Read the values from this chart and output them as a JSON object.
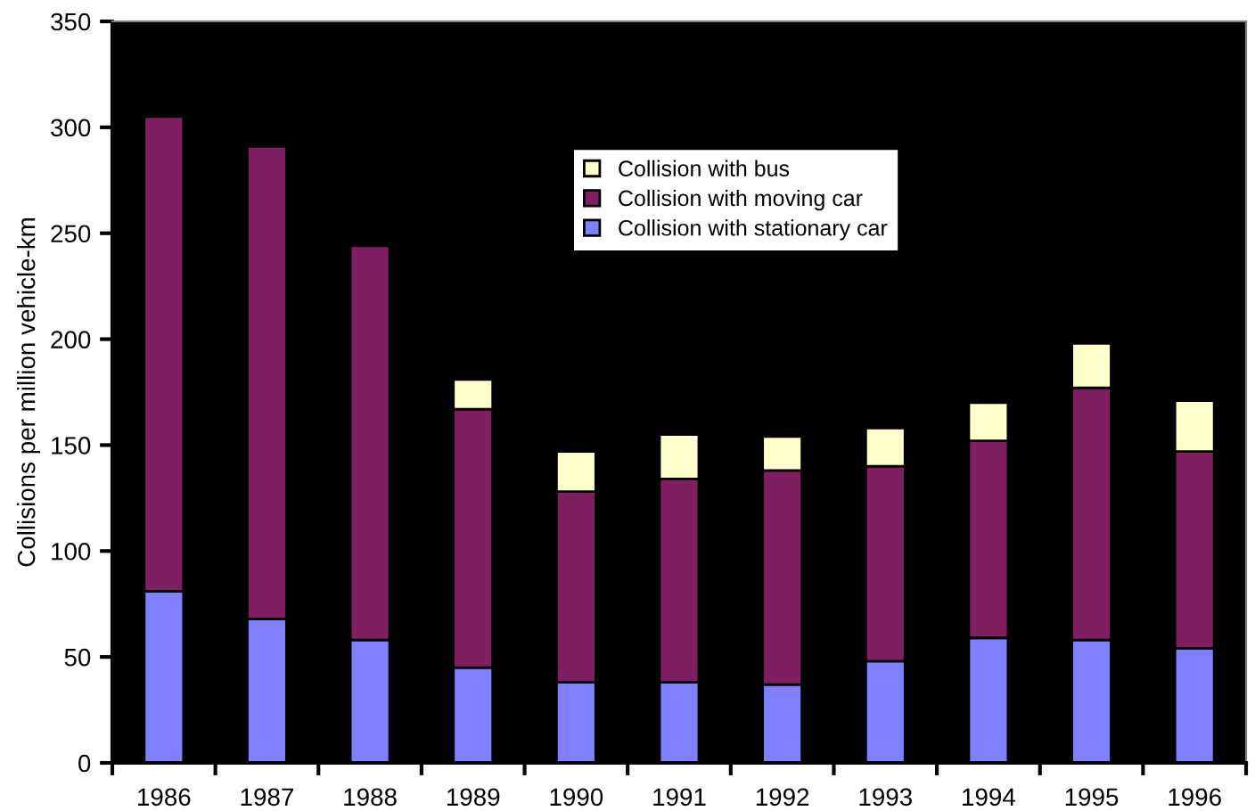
{
  "chart_data": {
    "type": "bar",
    "stacked": true,
    "ylabel": "Collisions per million vehicle-km",
    "categories": [
      "1986",
      "1987",
      "1988",
      "1989",
      "1990",
      "1991",
      "1992",
      "1993",
      "1994",
      "1995",
      "1996"
    ],
    "series": [
      {
        "name": "Collision with stationary car",
        "color": "#8080ff",
        "values": [
          81,
          68,
          58,
          45,
          38,
          38,
          37,
          48,
          59,
          58,
          54
        ]
      },
      {
        "name": "Collision with moving car",
        "color": "#7f1f5f",
        "values": [
          224,
          223,
          186,
          122,
          90,
          96,
          101,
          92,
          93,
          119,
          93
        ]
      },
      {
        "name": "Collision with bus",
        "color": "#ffffcc",
        "values": [
          null,
          null,
          null,
          14,
          19,
          21,
          16,
          18,
          18,
          21,
          24
        ]
      }
    ],
    "ylim": [
      0,
      350
    ],
    "yticks": [
      0,
      50,
      100,
      150,
      200,
      250,
      300,
      350
    ],
    "grid": false,
    "legend": "top"
  }
}
